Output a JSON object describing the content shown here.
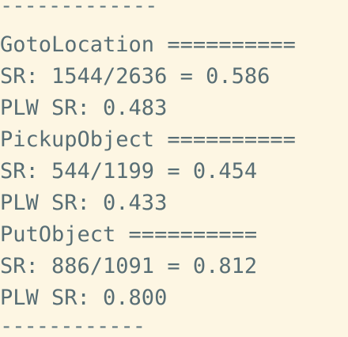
{
  "terminal": {
    "lines": [
      {
        "kind": "separator",
        "text": "-------------"
      },
      {
        "kind": "header",
        "text": "GotoLocation =========="
      },
      {
        "kind": "stat",
        "text": "SR: 1544/2636 = 0.586"
      },
      {
        "kind": "stat",
        "text": "PLW SR: 0.483"
      },
      {
        "kind": "header",
        "text": "PickupObject =========="
      },
      {
        "kind": "stat",
        "text": "SR: 544/1199 = 0.454"
      },
      {
        "kind": "stat",
        "text": "PLW SR: 0.433"
      },
      {
        "kind": "header",
        "text": "PutObject =========="
      },
      {
        "kind": "stat",
        "text": "SR: 886/1091 = 0.812"
      },
      {
        "kind": "stat",
        "text": "PLW SR: 0.800"
      },
      {
        "kind": "separator",
        "text": "------------"
      }
    ]
  },
  "colors": {
    "background": "#fdf6e3",
    "text": "#586e75"
  }
}
